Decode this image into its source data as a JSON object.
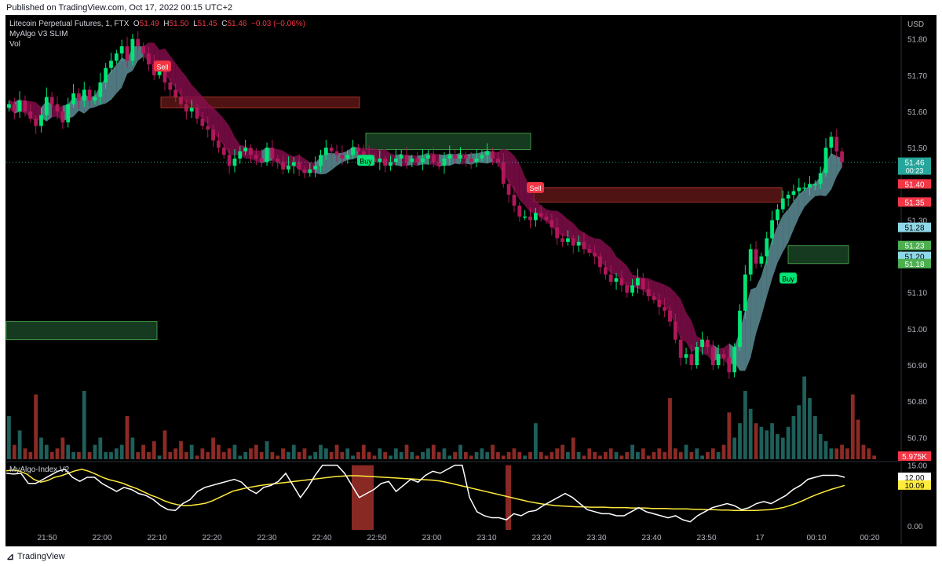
{
  "header": {
    "published": "Published on TradingView.com, Oct 17, 2022 00:15 UTC+2"
  },
  "legend": {
    "symbol": "Litecoin Perpetual Futures, 1, FTX",
    "o_label": "O",
    "o_value": "51.49",
    "h_label": "H",
    "h_value": "51.50",
    "l_label": "L",
    "l_value": "51.45",
    "c_label": "C",
    "c_value": "51.46",
    "change": "−0.03 (−0.06%)",
    "indicator1": "MyAlgo V3 SLIM",
    "indicator2": "Vol"
  },
  "oscillator": {
    "title": "MyAlgo-Index V2"
  },
  "footer": {
    "brand": "TradingView"
  },
  "colors": {
    "background": "#000000",
    "bull": "#00e676",
    "bear": "#b0185a",
    "cloud_bear": "#880e4f",
    "cloud_bull": "#8fd8e8",
    "sell_zone": "#6b1a1a",
    "buy_zone": "#1e4d2b",
    "vol_bull": "#1e5f5a",
    "vol_bear": "#8c2a25",
    "index_line": "#ffffff",
    "signal_line": "#ffeb3b"
  },
  "chart_data": [
    {
      "type": "candlestick",
      "title": "Litecoin Perpetual Futures, 1, FTX",
      "x_tick_labels": [
        "21:50",
        "22:00",
        "22:10",
        "22:20",
        "22:30",
        "22:40",
        "22:50",
        "23:00",
        "23:10",
        "23:20",
        "23:30",
        "23:40",
        "23:50",
        "17",
        "00:10",
        "00:20"
      ],
      "y_axis_unit": "USD",
      "y_tick_labels": [
        "51.80",
        "51.70",
        "51.60",
        "51.50",
        "51.40",
        "51.30",
        "51.20",
        "51.10",
        "51.00",
        "50.90",
        "50.80",
        "50.70"
      ],
      "ylim": [
        50.64,
        51.86
      ],
      "close_series": [
        51.62,
        51.6,
        51.63,
        51.6,
        51.58,
        51.56,
        51.59,
        51.64,
        51.62,
        51.6,
        51.57,
        51.62,
        51.65,
        51.63,
        51.66,
        51.63,
        51.64,
        51.68,
        51.72,
        51.74,
        51.76,
        51.78,
        51.74,
        51.8,
        51.78,
        51.76,
        51.73,
        51.7,
        51.72,
        51.68,
        51.66,
        51.64,
        51.62,
        51.6,
        51.61,
        51.58,
        51.56,
        51.55,
        51.52,
        51.5,
        51.48,
        51.45,
        51.47,
        51.49,
        51.5,
        51.48,
        51.47,
        51.46,
        51.5,
        51.47,
        51.46,
        51.44,
        51.45,
        51.46,
        51.44,
        51.43,
        51.44,
        51.45,
        51.48,
        51.5,
        51.49,
        51.48,
        51.47,
        51.48,
        51.5,
        51.49,
        51.48,
        51.47,
        51.46,
        51.47,
        51.45,
        51.46,
        51.47,
        51.48,
        51.46,
        51.47,
        51.46,
        51.47,
        51.48,
        51.46,
        51.45,
        51.47,
        51.48,
        51.47,
        51.48,
        51.47,
        51.46,
        51.47,
        51.48,
        51.49,
        51.47,
        51.46,
        51.4,
        51.37,
        51.34,
        51.31,
        51.31,
        51.3,
        51.32,
        51.31,
        51.3,
        51.28,
        51.25,
        51.24,
        51.25,
        51.23,
        51.24,
        51.22,
        51.21,
        51.2,
        51.17,
        51.15,
        51.13,
        51.14,
        51.12,
        51.1,
        51.12,
        51.14,
        51.11,
        51.09,
        51.08,
        51.06,
        51.05,
        51.02,
        50.97,
        50.92,
        50.93,
        50.9,
        50.95,
        50.97,
        50.95,
        50.9,
        50.93,
        50.92,
        50.88,
        50.95,
        51.05,
        51.15,
        51.22,
        51.18,
        51.2,
        51.25,
        51.3,
        51.33,
        51.36,
        51.37,
        51.38,
        51.39,
        51.39,
        51.4,
        51.4,
        51.43,
        51.5,
        51.53,
        51.49,
        51.46
      ],
      "volume_series": [
        0.6,
        0.2,
        0.4,
        0.15,
        0.1,
        0.9,
        0.3,
        0.2,
        0.1,
        0.15,
        0.3,
        0.2,
        0.1,
        0.1,
        0.95,
        0.1,
        0.2,
        0.3,
        0.1,
        0.1,
        0.15,
        0.2,
        0.6,
        0.3,
        0.1,
        0.2,
        0.1,
        0.25,
        0.05,
        0.4,
        0.1,
        0.15,
        0.25,
        0.1,
        0.2,
        0.05,
        0.15,
        0.1,
        0.3,
        0.2,
        0.1,
        0.15,
        0.2,
        0.05,
        0.1,
        0.15,
        0.2,
        0.1,
        0.25,
        0.1,
        0.05,
        0.15,
        0.1,
        0.2,
        0.1,
        0.15,
        0.05,
        0.1,
        0.2,
        0.15,
        0.1,
        0.2,
        0.1,
        0.15,
        0.05,
        0.1,
        0.2,
        0.1,
        0.05,
        0.15,
        0.1,
        0.05,
        0.15,
        0.1,
        0.2,
        0.1,
        0.05,
        0.1,
        0.15,
        0.2,
        0.1,
        0.15,
        0.05,
        0.1,
        0.2,
        0.1,
        0.05,
        0.1,
        0.15,
        0.1,
        0.2,
        0.1,
        0.05,
        0.1,
        0.15,
        0.1,
        0.05,
        0.1,
        0.5,
        0.1,
        0.05,
        0.1,
        0.15,
        0.2,
        0.1,
        0.3,
        0.1,
        0.05,
        0.15,
        0.1,
        0.05,
        0.1,
        0.15,
        0.1,
        0.05,
        0.1,
        0.2,
        0.1,
        0.15,
        0.05,
        0.1,
        0.15,
        0.1,
        0.85,
        0.15,
        0.1,
        0.2,
        0.1,
        0.15,
        0.05,
        0.1,
        0.15,
        0.1,
        0.2,
        0.65,
        0.3,
        0.5,
        0.95,
        0.7,
        0.5,
        0.45,
        0.4,
        0.5,
        0.35,
        0.3,
        0.45,
        0.6,
        0.75,
        1.15,
        0.85,
        0.6,
        0.35,
        0.25,
        0.15,
        0.15,
        0.2,
        0.15,
        0.9,
        0.55,
        0.2,
        0.15,
        0.05
      ]
    },
    {
      "type": "line",
      "title": "MyAlgo-Index V2",
      "y_tick_labels": [
        "15.00",
        "12.00",
        "10.09",
        "0.00"
      ],
      "ylim": [
        -1,
        15.5
      ],
      "series": [
        {
          "values": [
            13.6,
            13.8,
            13.5,
            12.8,
            11.5,
            10.8,
            11.2,
            12.0,
            12.4,
            13.0,
            13.6,
            14.0,
            13.5,
            12.8,
            12.0,
            11.4,
            11.0,
            10.5,
            9.8,
            9.2,
            8.4,
            7.6,
            7.0,
            6.2,
            5.6,
            5.2,
            5.0,
            5.1,
            5.3,
            5.6,
            6.2,
            7.0,
            7.8,
            8.6,
            9.0,
            9.4,
            9.7,
            10.0,
            10.2,
            10.4,
            10.6,
            10.8,
            11.0,
            11.2,
            11.4,
            11.6,
            11.8,
            12.0,
            12.2,
            12.3,
            12.4,
            12.4,
            12.3,
            12.2,
            12.1,
            12.0,
            11.9,
            11.8,
            11.7,
            11.6,
            11.5,
            11.4,
            11.3,
            11.1,
            10.8,
            10.4,
            10.0,
            9.6,
            9.2,
            8.8,
            8.4,
            8.0,
            7.6,
            7.2,
            6.8,
            6.4,
            6.0,
            5.7,
            5.4,
            5.2,
            5.0,
            4.9,
            4.8,
            4.7,
            4.7,
            4.6,
            4.6,
            4.6,
            4.5,
            4.5,
            4.5,
            4.4,
            4.4,
            4.4,
            4.3,
            4.3,
            4.3,
            4.2,
            4.2,
            4.2,
            4.1,
            4.1,
            4.0,
            4.0,
            3.9,
            3.9,
            3.8,
            3.8,
            3.8,
            3.8,
            3.9,
            4.0,
            4.2,
            4.5,
            5.0,
            5.6,
            6.3,
            7.1,
            7.8,
            8.4,
            9.0,
            9.5,
            10.0
          ]
        },
        {
          "values": [
            13.0,
            12.8,
            13.0,
            10.5,
            10.5,
            11.5,
            12.5,
            13.5,
            14.0,
            12.0,
            11.0,
            12.0,
            12.0,
            10.5,
            9.5,
            8.5,
            9.5,
            9.0,
            8.0,
            7.5,
            6.5,
            5.0,
            4.0,
            3.8,
            5.5,
            6.5,
            8.5,
            9.5,
            10.0,
            10.5,
            11.0,
            11.5,
            10.8,
            9.0,
            8.0,
            9.5,
            10.0,
            11.0,
            13.0,
            10.0,
            7.0,
            9.5,
            12.5,
            15.0,
            15.0,
            15.0,
            13.0,
            10.0,
            7.0,
            8.0,
            9.0,
            10.5,
            11.0,
            8.5,
            10.0,
            11.5,
            10.8,
            12.5,
            13.5,
            13.0,
            14.0,
            15.0,
            15.0,
            7.0,
            3.5,
            2.5,
            2.0,
            2.0,
            1.5,
            3.0,
            2.5,
            3.5,
            3.8,
            5.0,
            6.0,
            7.0,
            8.0,
            7.0,
            5.5,
            4.0,
            3.5,
            3.0,
            3.0,
            2.5,
            2.5,
            3.5,
            4.5,
            3.5,
            3.0,
            2.5,
            2.0,
            2.5,
            1.5,
            1.0,
            2.5,
            3.5,
            4.5,
            5.0,
            5.5,
            5.0,
            4.0,
            4.5,
            5.5,
            6.0,
            5.5,
            6.5,
            7.5,
            9.0,
            10.0,
            11.5,
            12.0,
            12.5,
            12.5,
            12.5,
            12.0
          ]
        }
      ]
    }
  ],
  "signals": [
    {
      "label": "Sell"
    },
    {
      "label": "Buy"
    },
    {
      "label": "Sell"
    },
    {
      "label": "Buy"
    }
  ],
  "price_labels": [
    {
      "text": "51.46",
      "sub": "00:23",
      "bg": "#26a69a"
    },
    {
      "text": "51.40",
      "bg": "#f23645"
    },
    {
      "text": "51.35",
      "bg": "#f23645"
    },
    {
      "text": "51.28",
      "bg": "#8fd8e8"
    },
    {
      "text": "51.23",
      "bg": "#4caf50"
    },
    {
      "text": "51.20",
      "bg": "#8fd8e8"
    },
    {
      "text": "51.18",
      "bg": "#4caf50"
    },
    {
      "text": "5.975K",
      "bg": "#f23645"
    }
  ],
  "osc_labels": [
    {
      "text": "12.00",
      "bg": "#ffffff"
    },
    {
      "text": "10.09",
      "bg": "#ffeb3b"
    }
  ]
}
